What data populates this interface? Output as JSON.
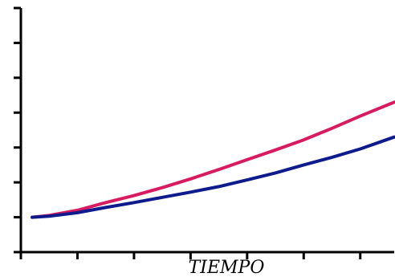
{
  "chart_data": {
    "type": "line",
    "title": "",
    "xlabel": "TIEMPO",
    "ylabel": "",
    "xlim": [
      0,
      6.6
    ],
    "ylim": [
      0,
      7
    ],
    "x_ticks": [
      0,
      1,
      2,
      3,
      4,
      5,
      6
    ],
    "y_ticks": [
      0,
      1,
      2,
      3,
      4,
      5,
      6,
      7
    ],
    "grid": false,
    "legend": "none",
    "series": [
      {
        "color": "#d81b60",
        "x": [
          0.2,
          0.5,
          1,
          1.5,
          2,
          2.5,
          3,
          3.5,
          4,
          4.5,
          5,
          5.5,
          6,
          6.6
        ],
        "y": [
          1.0,
          1.05,
          1.2,
          1.42,
          1.62,
          1.85,
          2.1,
          2.37,
          2.65,
          2.93,
          3.22,
          3.55,
          3.9,
          4.3
        ]
      },
      {
        "color": "#0d1b8c",
        "x": [
          0.2,
          0.5,
          1,
          1.5,
          2,
          2.5,
          3,
          3.5,
          4,
          4.5,
          5,
          5.5,
          6,
          6.6
        ],
        "y": [
          1.0,
          1.03,
          1.13,
          1.28,
          1.42,
          1.57,
          1.72,
          1.88,
          2.07,
          2.27,
          2.5,
          2.72,
          2.96,
          3.3
        ]
      }
    ]
  }
}
